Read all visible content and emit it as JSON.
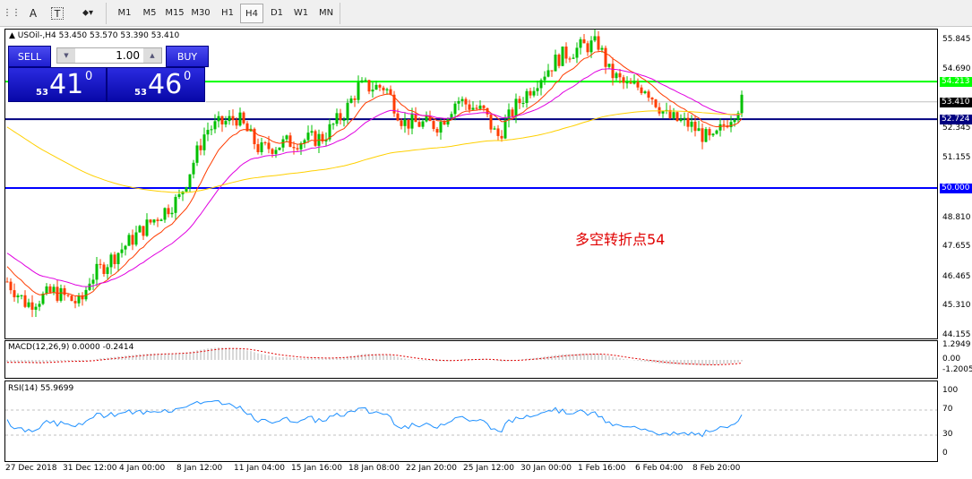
{
  "toolbar": {
    "timeframes": [
      "M1",
      "M5",
      "M15",
      "M30",
      "H1",
      "H4",
      "D1",
      "W1",
      "MN"
    ],
    "active": "H4"
  },
  "chart": {
    "header": "USOil-,H4  53.450 53.570 53.390 53.410",
    "symbol": "USOil-",
    "timeframe": "H4",
    "open": 53.45,
    "high": 53.57,
    "low": 53.39,
    "close": 53.41,
    "trade": {
      "sell_label": "SELL",
      "buy_label": "BUY",
      "volume": "1.00",
      "sell_prefix": "53",
      "sell_big": "41",
      "sell_sup": "0",
      "buy_prefix": "53",
      "buy_big": "46",
      "buy_sup": "0"
    },
    "price_axis": [
      "55.845",
      "54.690",
      "52.345",
      "51.155",
      "48.810",
      "47.655",
      "46.465",
      "45.310",
      "44.155"
    ],
    "price_range": [
      44.155,
      55.845
    ],
    "levels": [
      {
        "label": "54.213",
        "value": 54.213,
        "color": "#00ff00"
      },
      {
        "label": "52.724",
        "value": 52.724,
        "color": "#000080"
      },
      {
        "label": "50.000",
        "value": 50.0,
        "color": "#0000ff"
      }
    ],
    "current": {
      "label": "53.410",
      "value": 53.41
    },
    "annotation": "多空转折点54",
    "colors": {
      "bull": "#00c000",
      "bear": "#ff3c00",
      "ma_fast": "#ff3c00",
      "ma_mid": "#e000e0",
      "ma_slow": "#ffd000"
    }
  },
  "macd": {
    "title": "MACD(12,26,9) 0.0000 -0.2414",
    "axis": [
      "1.2949",
      "0.00",
      "-1.2005"
    ]
  },
  "rsi": {
    "title": "RSI(14) 55.9699",
    "axis": [
      "100",
      "70",
      "30",
      "0"
    ],
    "levels": [
      70,
      30
    ]
  },
  "time_axis": [
    "27 Dec 2018",
    "31 Dec 12:00",
    "4 Jan 00:00",
    "8 Jan 12:00",
    "11 Jan 04:00",
    "15 Jan 16:00",
    "18 Jan 08:00",
    "22 Jan 20:00",
    "25 Jan 12:00",
    "30 Jan 00:00",
    "1 Feb 16:00",
    "6 Feb 04:00",
    "8 Feb 20:00"
  ]
}
